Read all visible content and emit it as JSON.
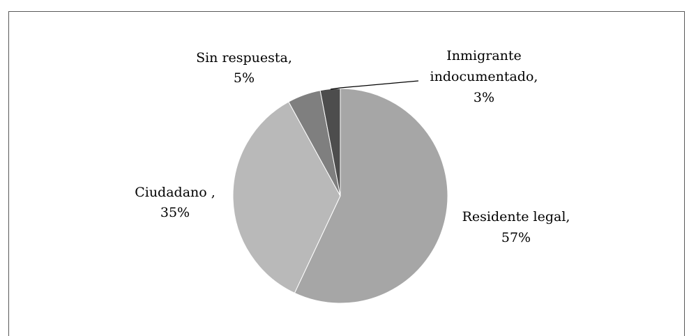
{
  "chart_data": {
    "type": "pie",
    "title": "",
    "slices": [
      {
        "name": "Residente legal",
        "value": 57,
        "label_line1": "Residente legal,",
        "label_line2": "57%",
        "color": "#a6a6a6"
      },
      {
        "name": "Ciudadano",
        "value": 35,
        "label_line1": "Ciudadano ,",
        "label_line2": "35%",
        "color": "#b9b9b9"
      },
      {
        "name": "Sin respuesta",
        "value": 5,
        "label_line1": "Sin respuesta,",
        "label_line2": "5%",
        "color": "#7f7f7f"
      },
      {
        "name": "Inmigrante indocumentado",
        "value": 3,
        "label_line1": "Inmigrante",
        "label_line2": "indocumentado,",
        "label_line3": "3%",
        "color": "#4d4d4d"
      }
    ],
    "legend": "none",
    "data_labels": "outside"
  }
}
